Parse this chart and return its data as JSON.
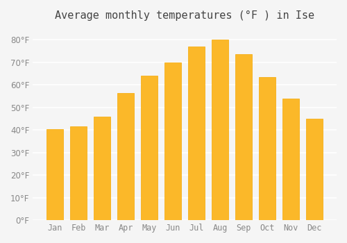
{
  "title": "Average monthly temperatures (°F ) in Ise",
  "months": [
    "Jan",
    "Feb",
    "Mar",
    "Apr",
    "May",
    "Jun",
    "Jul",
    "Aug",
    "Sep",
    "Oct",
    "Nov",
    "Dec"
  ],
  "values": [
    40.5,
    41.5,
    46,
    56.5,
    64,
    70,
    77,
    80,
    73.5,
    63.5,
    54,
    45
  ],
  "bar_color": "#FBB829",
  "bar_edge_color": "#F5A800",
  "background_color": "#F5F5F5",
  "grid_color": "#FFFFFF",
  "ylim": [
    0,
    85
  ],
  "yticks": [
    0,
    10,
    20,
    30,
    40,
    50,
    60,
    70,
    80
  ],
  "title_fontsize": 11,
  "tick_fontsize": 8.5
}
